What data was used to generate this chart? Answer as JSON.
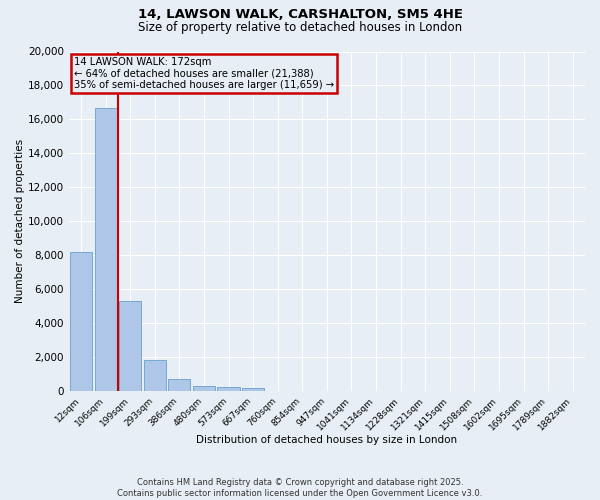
{
  "title1": "14, LAWSON WALK, CARSHALTON, SM5 4HE",
  "title2": "Size of property relative to detached houses in London",
  "xlabel": "Distribution of detached houses by size in London",
  "ylabel": "Number of detached properties",
  "categories": [
    "12sqm",
    "106sqm",
    "199sqm",
    "293sqm",
    "386sqm",
    "480sqm",
    "573sqm",
    "667sqm",
    "760sqm",
    "854sqm",
    "947sqm",
    "1041sqm",
    "1134sqm",
    "1228sqm",
    "1321sqm",
    "1415sqm",
    "1508sqm",
    "1602sqm",
    "1695sqm",
    "1789sqm",
    "1882sqm"
  ],
  "values": [
    8200,
    16700,
    5300,
    1850,
    700,
    300,
    220,
    170,
    0,
    0,
    0,
    0,
    0,
    0,
    0,
    0,
    0,
    0,
    0,
    0,
    0
  ],
  "bar_color": "#aec6e8",
  "bar_edge_color": "#6aa0cc",
  "property_line_label": "14 LAWSON WALK: 172sqm",
  "annotation_line1": "← 64% of detached houses are smaller (21,388)",
  "annotation_line2": "35% of semi-detached houses are larger (11,659) →",
  "box_color": "#cc0000",
  "property_line_x": 1.5,
  "ylim": [
    0,
    20000
  ],
  "yticks": [
    0,
    2000,
    4000,
    6000,
    8000,
    10000,
    12000,
    14000,
    16000,
    18000,
    20000
  ],
  "footer1": "Contains HM Land Registry data © Crown copyright and database right 2025.",
  "footer2": "Contains public sector information licensed under the Open Government Licence v3.0.",
  "bg_color": "#e8eef5",
  "grid_color": "#ffffff"
}
